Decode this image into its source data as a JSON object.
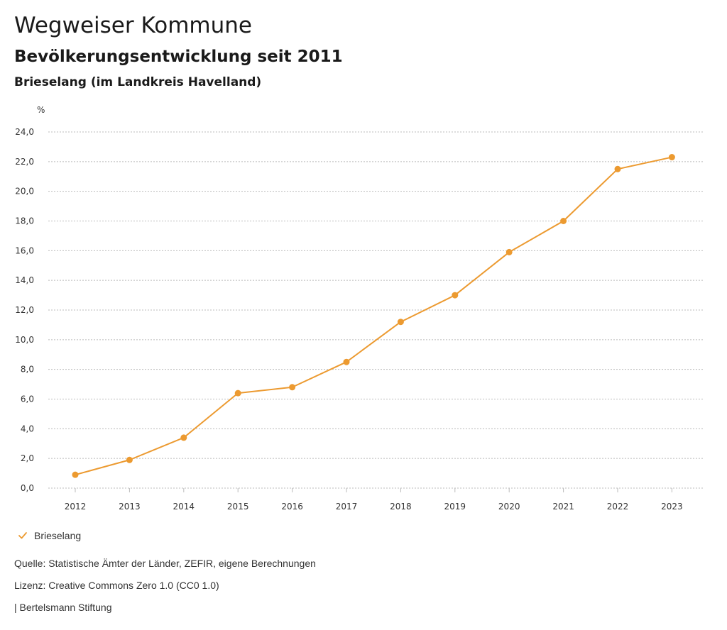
{
  "header": {
    "title": "Wegweiser Kommune",
    "subtitle": "Bevölkerungsentwicklung seit 2011",
    "region": "Brieselang (im Landkreis Havelland)"
  },
  "footer": {
    "source": "Quelle: Statistische Ämter der Länder, ZEFIR, eigene Berechnungen",
    "license": "Lizenz: Creative Commons Zero 1.0 (CC0 1.0)",
    "publisher": "| Bertelsmann Stiftung"
  },
  "colors": {
    "series": "#ec9a30",
    "grid": "#bbbbbb"
  },
  "chart_data": {
    "type": "line",
    "title": "Bevölkerungsentwicklung seit 2011",
    "xlabel": "",
    "ylabel": "%",
    "ylim": [
      0,
      24
    ],
    "yticks": [
      "0,0",
      "2,0",
      "4,0",
      "6,0",
      "8,0",
      "10,0",
      "12,0",
      "14,0",
      "16,0",
      "18,0",
      "20,0",
      "22,0",
      "24,0"
    ],
    "grid": true,
    "categories": [
      "2012",
      "2013",
      "2014",
      "2015",
      "2016",
      "2017",
      "2018",
      "2019",
      "2020",
      "2021",
      "2022",
      "2023"
    ],
    "series": [
      {
        "name": "Brieselang",
        "values": [
          0.9,
          1.9,
          3.4,
          6.4,
          6.8,
          8.5,
          11.2,
          13.0,
          15.9,
          18.0,
          21.5,
          22.3
        ]
      }
    ],
    "legend_position": "bottom-left"
  }
}
